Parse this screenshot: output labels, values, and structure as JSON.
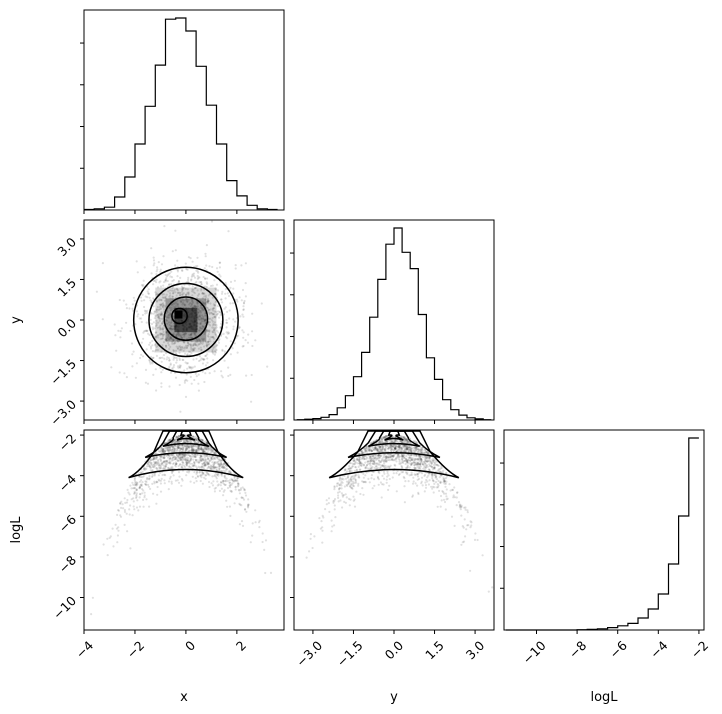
{
  "chart_data": {
    "type": "corner",
    "parameters": [
      "x",
      "y",
      "logL"
    ],
    "axis_labels": {
      "x": "x",
      "y": "y",
      "logL": "logL"
    },
    "ticks": {
      "x": {
        "values": [
          -4,
          -2,
          0,
          2
        ],
        "labels": [
          "−4",
          "−2",
          "0",
          "2"
        ]
      },
      "y": {
        "values": [
          -3.0,
          -1.5,
          0.0,
          1.5,
          3.0
        ],
        "labels": [
          "−3.0",
          "−1.5",
          "0.0",
          "1.5",
          "3.0"
        ]
      },
      "logL": {
        "values": [
          -10,
          -8,
          -6,
          -4,
          -2
        ],
        "labels": [
          "−10",
          "−8",
          "−6",
          "−4",
          "−2"
        ]
      }
    },
    "ranges": {
      "x": [
        -4.0,
        3.85
      ],
      "y": [
        -3.7,
        3.7
      ],
      "logL": [
        -11.6,
        -1.75
      ]
    },
    "histograms": {
      "x": {
        "bin_edges": [
          -4.0,
          -3.6,
          -3.2,
          -2.8,
          -2.4,
          -2.0,
          -1.6,
          -1.2,
          -0.8,
          -0.4,
          0.0,
          0.4,
          0.8,
          1.2,
          1.6,
          2.0,
          2.4,
          2.8,
          3.2,
          3.6
        ],
        "counts": [
          2,
          5,
          12,
          55,
          140,
          280,
          440,
          615,
          810,
          815,
          760,
          610,
          445,
          280,
          125,
          60,
          20,
          5,
          2
        ]
      },
      "y": {
        "bin_edges": [
          -3.6,
          -3.3,
          -3.0,
          -2.7,
          -2.4,
          -2.1,
          -1.8,
          -1.5,
          -1.2,
          -0.9,
          -0.6,
          -0.3,
          0.0,
          0.3,
          0.6,
          0.9,
          1.2,
          1.5,
          1.8,
          2.1,
          2.4,
          2.7,
          3.0,
          3.3,
          3.6
        ],
        "counts": [
          1,
          3,
          5,
          10,
          20,
          45,
          90,
          160,
          250,
          380,
          520,
          650,
          710,
          620,
          560,
          390,
          230,
          150,
          75,
          38,
          18,
          8,
          4,
          1
        ]
      },
      "logL": {
        "bin_edges": [
          -11.5,
          -11.0,
          -10.5,
          -10.0,
          -9.5,
          -9.0,
          -8.5,
          -8.0,
          -7.5,
          -7.0,
          -6.5,
          -6.0,
          -5.5,
          -5.0,
          -4.5,
          -4.0,
          -3.5,
          -3.0,
          -2.5,
          -2.0
        ],
        "counts": [
          0,
          0,
          0,
          0,
          0,
          0,
          0,
          1,
          2,
          4,
          8,
          14,
          22,
          40,
          70,
          120,
          220,
          380,
          640
        ]
      }
    },
    "contours": {
      "x_y": [
        {
          "level": "outer",
          "cx": 0.0,
          "cy": 0.0,
          "rx": 2.05,
          "ry": 1.95
        },
        {
          "level": "mid",
          "cx": 0.0,
          "cy": 0.0,
          "rx": 1.45,
          "ry": 1.35
        },
        {
          "level": "inner",
          "cx": 0.0,
          "cy": 0.05,
          "rx": 0.85,
          "ry": 0.8
        },
        {
          "level": "core",
          "cx": -0.25,
          "cy": 0.15,
          "rx": 0.3,
          "ry": 0.28
        }
      ],
      "x_logL": [
        {
          "level": "outer",
          "left": -2.25,
          "right": 2.25,
          "bottom": -4.1
        },
        {
          "level": "mid",
          "left": -1.6,
          "right": 1.6,
          "bottom": -3.1
        },
        {
          "level": "inner",
          "left": -0.9,
          "right": 0.9,
          "bottom": -2.55
        },
        {
          "level": "core",
          "left": -0.35,
          "right": 0.35,
          "bottom": -2.25
        }
      ],
      "y_logL": [
        {
          "level": "outer",
          "left": -2.4,
          "right": 2.4,
          "bottom": -4.1
        },
        {
          "level": "mid",
          "left": -1.7,
          "right": 1.7,
          "bottom": -3.1
        },
        {
          "level": "inner",
          "left": -0.95,
          "right": 0.95,
          "bottom": -2.55
        },
        {
          "level": "core",
          "left": -0.35,
          "right": 0.35,
          "bottom": -2.25
        }
      ]
    }
  }
}
